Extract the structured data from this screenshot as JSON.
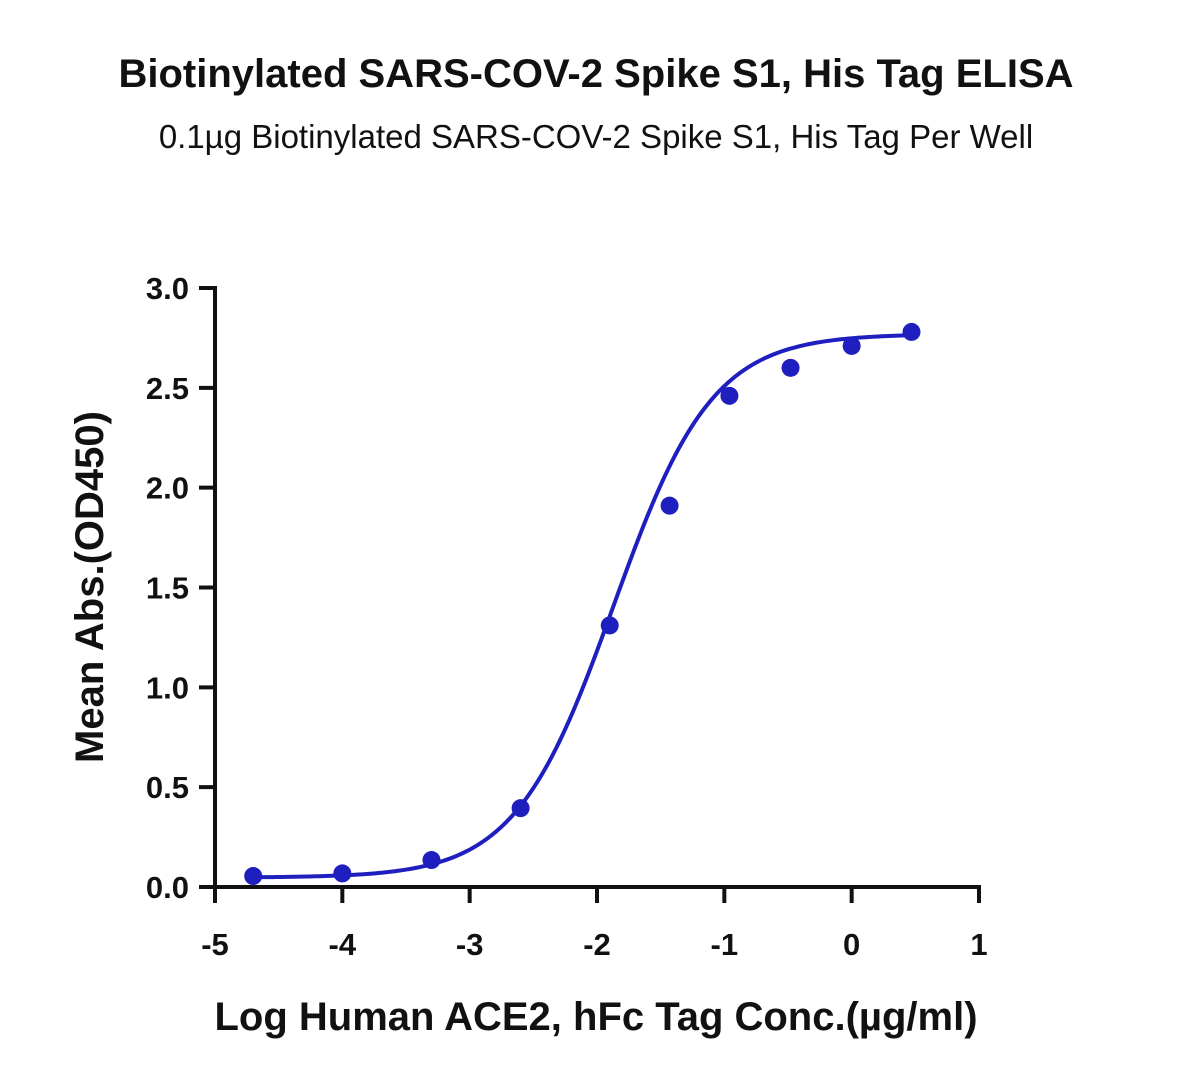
{
  "chart_data": {
    "type": "scatter",
    "title": "Biotinylated SARS-COV-2 Spike S1, His Tag ELISA",
    "subtitle": "0.1µg Biotinylated SARS-COV-2 Spike S1, His Tag Per Well",
    "xlabel": "Log Human ACE2, hFc Tag Conc.(µg/ml)",
    "ylabel": "Mean Abs.(OD450)",
    "xlim": [
      -5,
      1
    ],
    "ylim": [
      0,
      3.0
    ],
    "x_ticks": [
      "-5",
      "-4",
      "-3",
      "-2",
      "-1",
      "0",
      "1"
    ],
    "y_ticks": [
      "0.0",
      "0.5",
      "1.0",
      "1.5",
      "2.0",
      "2.5",
      "3.0"
    ],
    "grid": false,
    "series": [
      {
        "color": "#1f1fbf",
        "x": [
          -4.7,
          -4.0,
          -3.3,
          -2.6,
          -1.9,
          -1.43,
          -0.96,
          -0.48,
          0.0,
          0.47
        ],
        "y": [
          0.055,
          0.068,
          0.135,
          0.395,
          1.31,
          1.91,
          2.46,
          2.6,
          2.71,
          2.78
        ]
      }
    ],
    "fit_curve": {
      "model": "4PL",
      "bottom": 0.047,
      "top": 2.77,
      "logEC50": -1.87,
      "hill": 1.12,
      "x_range": [
        -4.7,
        0.47
      ]
    }
  }
}
